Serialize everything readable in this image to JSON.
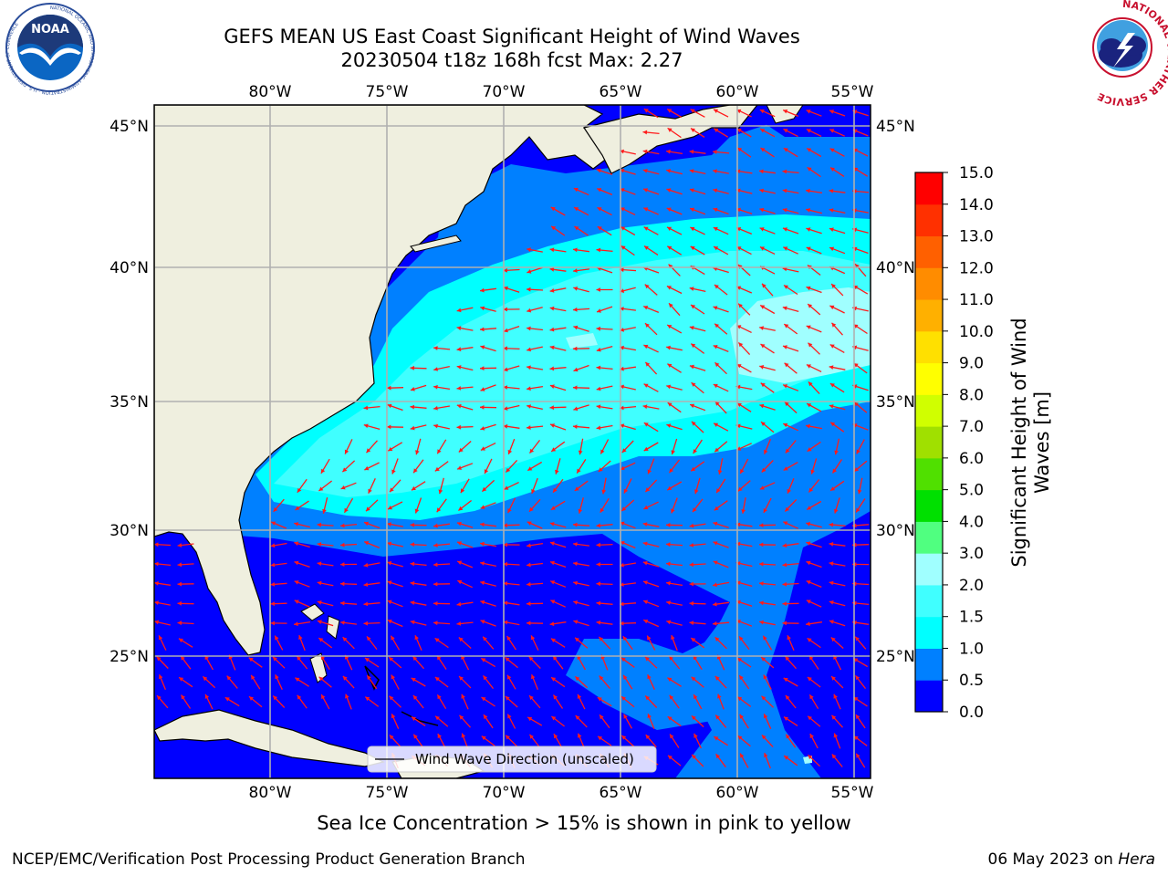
{
  "header": {
    "title_line1": "GEFS MEAN US East Coast Significant Height of Wind Waves",
    "title_line2": "20230504 t18z 168h fcst   Max: 2.27"
  },
  "logos": {
    "left": "NOAA",
    "left_ring": "NATIONAL OCEANIC AND ATMOSPHERIC ADMINISTRATION · U.S. DEPARTMENT OF COMMERCE",
    "right_ring": "NATIONAL WEATHER SERVICE"
  },
  "axes": {
    "lon_ticks": [
      "80°W",
      "75°W",
      "70°W",
      "65°W",
      "60°W",
      "55°W"
    ],
    "lat_ticks": [
      "45°N",
      "40°N",
      "35°N",
      "30°N",
      "25°N"
    ]
  },
  "legend": {
    "wind_wave_label": "Wind Wave Direction (unscaled)"
  },
  "colorbar": {
    "title_line1": "Significant Height of Wind",
    "title_line2": "Waves [m]",
    "ticks": [
      "0.0",
      "0.5",
      "1.0",
      "1.5",
      "2.0",
      "3.0",
      "4.0",
      "5.0",
      "6.0",
      "7.0",
      "8.0",
      "9.0",
      "10.0",
      "11.0",
      "12.0",
      "13.0",
      "14.0",
      "15.0"
    ],
    "colors": [
      "#0000ff",
      "#0080ff",
      "#00ffff",
      "#40ffff",
      "#a0ffff",
      "#50ff80",
      "#00e000",
      "#50e000",
      "#a0e000",
      "#d0ff00",
      "#ffff00",
      "#ffe000",
      "#ffb000",
      "#ff8c00",
      "#ff6000",
      "#ff3000",
      "#ff0000"
    ]
  },
  "notes": {
    "sea_ice": "Sea Ice Concentration > 15% is shown in pink to yellow",
    "credit": "NCEP/EMC/Verification Post Processing Product Generation Branch",
    "date_prefix": "06 May 2023 on",
    "host": "Hera"
  }
}
